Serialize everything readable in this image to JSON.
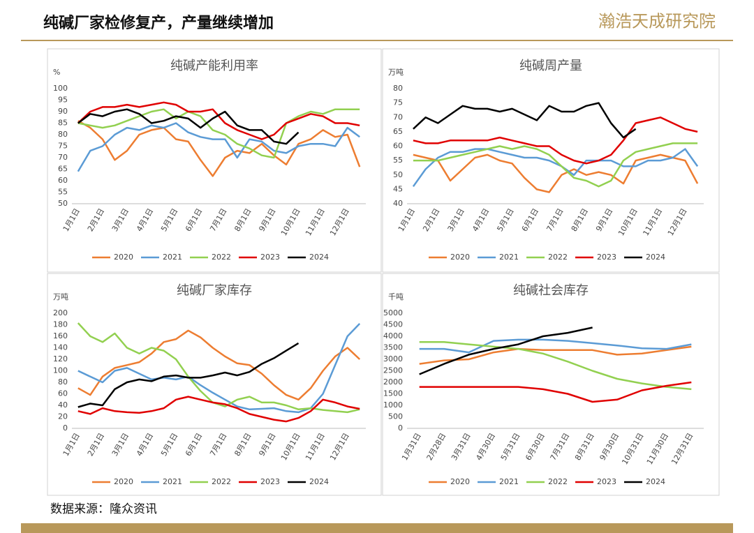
{
  "header": {
    "title": "纯碱厂家检修复产，产量继续增加",
    "logo": "瀚浩天成研究院"
  },
  "footer": {
    "source": "数据来源：隆众资讯"
  },
  "chart_data": [
    {
      "type": "line",
      "title": "纯碱产能利用率",
      "y_unit": "%",
      "ylim": [
        50,
        100
      ],
      "yticks": [
        50,
        55,
        60,
        65,
        70,
        75,
        80,
        85,
        90,
        95,
        100
      ],
      "categories": [
        "1月1日",
        null,
        "2月1日",
        null,
        "3月1日",
        null,
        "4月1日",
        null,
        "5月1日",
        null,
        "6月1日",
        null,
        "7月1日",
        null,
        "8月1日",
        null,
        "9月1日",
        null,
        "10月1日",
        null,
        "11月1日",
        null,
        "12月1日",
        null
      ],
      "series": [
        {
          "name": "2020",
          "color": "#ed7d31",
          "values": [
            86,
            83,
            78,
            69,
            73,
            80,
            82,
            83,
            78,
            77,
            69,
            62,
            70,
            73,
            72,
            76,
            71,
            67,
            76,
            78,
            82,
            79,
            80,
            66
          ]
        },
        {
          "name": "2021",
          "color": "#5b9bd5",
          "values": [
            64,
            73,
            75,
            80,
            83,
            82,
            84,
            83,
            85,
            81,
            79,
            78,
            78,
            70,
            78,
            77,
            73,
            72,
            75,
            76,
            76,
            75,
            83,
            79
          ]
        },
        {
          "name": "2022",
          "color": "#92d050",
          "values": [
            85,
            84,
            83,
            84,
            86,
            88,
            90,
            91,
            87,
            90,
            88,
            82,
            80,
            76,
            74,
            71,
            70,
            85,
            88,
            90,
            89,
            91,
            91,
            91
          ]
        },
        {
          "name": "2023",
          "color": "#e00000",
          "values": [
            85,
            90,
            92,
            92,
            93,
            92,
            93,
            94,
            93,
            90,
            90,
            91,
            85,
            82,
            80,
            78,
            80,
            85,
            87,
            89,
            88,
            85,
            85,
            84
          ]
        },
        {
          "name": "2024",
          "color": "#000000",
          "values": [
            85,
            89,
            88,
            90,
            91,
            89,
            85,
            86,
            88,
            87,
            83,
            87,
            90,
            84,
            82,
            82,
            77,
            76,
            81,
            null,
            null,
            null,
            null,
            null
          ]
        }
      ]
    },
    {
      "type": "line",
      "title": "纯碱周产量",
      "y_unit": "万吨",
      "ylim": [
        40,
        80
      ],
      "yticks": [
        40,
        45,
        50,
        55,
        60,
        65,
        70,
        75,
        80
      ],
      "categories": [
        "1月1日",
        null,
        "2月1日",
        null,
        "3月1日",
        null,
        "4月1日",
        null,
        "5月1日",
        null,
        "6月1日",
        null,
        "7月1日",
        null,
        "8月1日",
        null,
        "9月1日",
        null,
        "10月1日",
        null,
        "11月1日",
        null,
        "12月1日",
        null
      ],
      "series": [
        {
          "name": "2020",
          "color": "#ed7d31",
          "values": [
            57,
            56,
            55,
            48,
            52,
            56,
            57,
            55,
            54,
            49,
            45,
            44,
            50,
            52,
            50,
            51,
            50,
            47,
            55,
            56,
            57,
            56,
            55,
            47
          ]
        },
        {
          "name": "2021",
          "color": "#5b9bd5",
          "values": [
            46,
            52,
            56,
            58,
            58,
            59,
            59,
            58,
            57,
            56,
            56,
            55,
            53,
            50,
            55,
            55,
            55,
            53,
            53,
            55,
            55,
            56,
            59,
            53
          ]
        },
        {
          "name": "2022",
          "color": "#92d050",
          "values": [
            55,
            55,
            55,
            56,
            57,
            58,
            59,
            60,
            59,
            60,
            59,
            57,
            53,
            49,
            48,
            46,
            48,
            55,
            58,
            59,
            60,
            61,
            61,
            61
          ]
        },
        {
          "name": "2023",
          "color": "#e00000",
          "values": [
            62,
            61,
            61,
            62,
            62,
            62,
            62,
            63,
            62,
            61,
            60,
            60,
            57,
            55,
            54,
            55,
            57,
            62,
            68,
            69,
            70,
            68,
            66,
            65
          ]
        },
        {
          "name": "2024",
          "color": "#000000",
          "values": [
            66,
            70,
            68,
            71,
            74,
            73,
            73,
            72,
            73,
            71,
            69,
            74,
            72,
            72,
            74,
            75,
            68,
            63,
            66,
            null,
            null,
            null,
            null,
            null
          ]
        }
      ]
    },
    {
      "type": "line",
      "title": "纯碱厂家库存",
      "y_unit": "万吨",
      "ylim": [
        0,
        200
      ],
      "yticks": [
        0,
        20,
        40,
        60,
        80,
        100,
        120,
        140,
        160,
        180,
        200
      ],
      "categories": [
        "1月1日",
        null,
        "2月1日",
        null,
        "3月1日",
        null,
        "4月1日",
        null,
        "5月1日",
        null,
        "6月1日",
        null,
        "7月1日",
        null,
        "8月1日",
        null,
        "9月1日",
        null,
        "10月1日",
        null,
        "11月1日",
        null,
        "12月1日",
        null
      ],
      "series": [
        {
          "name": "2020",
          "color": "#ed7d31",
          "values": [
            70,
            58,
            90,
            105,
            110,
            115,
            130,
            150,
            155,
            170,
            158,
            140,
            125,
            113,
            110,
            95,
            75,
            58,
            50,
            70,
            100,
            125,
            140,
            120
          ]
        },
        {
          "name": "2021",
          "color": "#5b9bd5",
          "values": [
            100,
            90,
            80,
            100,
            105,
            95,
            85,
            88,
            85,
            90,
            75,
            62,
            50,
            38,
            33,
            34,
            35,
            30,
            28,
            35,
            60,
            110,
            160,
            182
          ]
        },
        {
          "name": "2022",
          "color": "#92d050",
          "values": [
            183,
            160,
            150,
            165,
            140,
            130,
            140,
            135,
            120,
            90,
            65,
            45,
            38,
            50,
            55,
            45,
            45,
            40,
            33,
            35,
            32,
            30,
            28,
            33
          ]
        },
        {
          "name": "2023",
          "color": "#e00000",
          "values": [
            30,
            25,
            35,
            30,
            28,
            27,
            30,
            35,
            50,
            55,
            50,
            45,
            42,
            35,
            25,
            20,
            15,
            12,
            18,
            30,
            50,
            45,
            38,
            34
          ]
        },
        {
          "name": "2024",
          "color": "#000000",
          "values": [
            37,
            43,
            40,
            68,
            80,
            85,
            82,
            90,
            92,
            88,
            88,
            92,
            97,
            92,
            98,
            112,
            122,
            135,
            148,
            null,
            null,
            null,
            null,
            null
          ]
        }
      ]
    },
    {
      "type": "line",
      "title": "纯碱社会库存",
      "y_unit": "千吨",
      "ylim": [
        0,
        5000
      ],
      "yticks": [
        0,
        500,
        1000,
        1500,
        2000,
        2500,
        3000,
        3500,
        4000,
        4500,
        5000
      ],
      "categories": [
        "1月31日",
        "2月28日",
        "3月31日",
        "4月30日",
        "5月31日",
        "6月30日",
        "7月31日",
        "8月31日",
        "9月30日",
        "10月31日",
        "11月30日",
        "12月31日"
      ],
      "series": [
        {
          "name": "2020",
          "color": "#ed7d31",
          "values": [
            2800,
            2950,
            3000,
            3300,
            3450,
            3400,
            3400,
            3400,
            3200,
            3250,
            3400,
            3550
          ]
        },
        {
          "name": "2021",
          "color": "#5b9bd5",
          "values": [
            3450,
            3450,
            3300,
            3800,
            3850,
            3850,
            3800,
            3700,
            3600,
            3480,
            3450,
            3650
          ]
        },
        {
          "name": "2022",
          "color": "#92d050",
          "values": [
            3750,
            3750,
            3650,
            3550,
            3450,
            3250,
            2900,
            2500,
            2150,
            1950,
            1800,
            1700
          ]
        },
        {
          "name": "2023",
          "color": "#e00000",
          "values": [
            1800,
            1800,
            1800,
            1800,
            1800,
            1700,
            1500,
            1150,
            1250,
            1650,
            1850,
            2000
          ]
        },
        {
          "name": "2024",
          "color": "#000000",
          "values": [
            2350,
            2800,
            3200,
            3450,
            3650,
            4000,
            4150,
            4380,
            null,
            null,
            null,
            null
          ]
        }
      ]
    }
  ]
}
